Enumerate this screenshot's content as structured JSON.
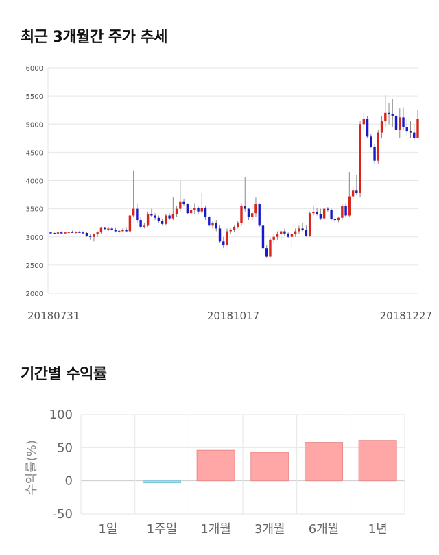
{
  "stock_section": {
    "title": "최근 3개월간 주가 추세"
  },
  "returns_section": {
    "title": "기간별 수익률"
  },
  "colors": {
    "up": "#d9261c",
    "down": "#1a1acd",
    "wick": "#888888",
    "bar_positive": "#ffa6a6",
    "bar_negative": "#a6dff0",
    "grid": "#e6e6e6"
  },
  "chart_data": [
    {
      "type": "candlestick",
      "title": "최근 3개월간 주가 추세",
      "ylim": [
        2000,
        6000
      ],
      "yticks": [
        2000,
        2500,
        3000,
        3500,
        4000,
        4500,
        5000,
        5500,
        6000
      ],
      "date_labels": [
        "20180731",
        "20181017",
        "20181227"
      ],
      "grid": true,
      "ohlc": [
        [
          3080,
          3090,
          3060,
          3070
        ],
        [
          3070,
          3080,
          3050,
          3060
        ],
        [
          3060,
          3090,
          3050,
          3080
        ],
        [
          3080,
          3100,
          3060,
          3070
        ],
        [
          3070,
          3090,
          3050,
          3080
        ],
        [
          3080,
          3100,
          3060,
          3090
        ],
        [
          3090,
          3110,
          3070,
          3080
        ],
        [
          3080,
          3100,
          3060,
          3090
        ],
        [
          3090,
          3110,
          3070,
          3080
        ],
        [
          3080,
          3100,
          3060,
          3070
        ],
        [
          3070,
          3090,
          3000,
          3020
        ],
        [
          3020,
          3050,
          2950,
          3000
        ],
        [
          3000,
          3060,
          2920,
          3050
        ],
        [
          3050,
          3100,
          3000,
          3080
        ],
        [
          3080,
          3180,
          3060,
          3160
        ],
        [
          3160,
          3180,
          3120,
          3140
        ],
        [
          3140,
          3170,
          3100,
          3150
        ],
        [
          3150,
          3180,
          3110,
          3130
        ],
        [
          3130,
          3160,
          3080,
          3100
        ],
        [
          3100,
          3140,
          3060,
          3110
        ],
        [
          3110,
          3150,
          3080,
          3120
        ],
        [
          3120,
          3160,
          3080,
          3100
        ],
        [
          3100,
          3400,
          3080,
          3380
        ],
        [
          3380,
          4180,
          3350,
          3500
        ],
        [
          3500,
          3600,
          3250,
          3300
        ],
        [
          3300,
          3350,
          3150,
          3180
        ],
        [
          3180,
          3250,
          3150,
          3200
        ],
        [
          3200,
          3450,
          3180,
          3400
        ],
        [
          3400,
          3500,
          3350,
          3380
        ],
        [
          3380,
          3420,
          3300,
          3340
        ],
        [
          3340,
          3380,
          3250,
          3280
        ],
        [
          3280,
          3320,
          3200,
          3230
        ],
        [
          3230,
          3400,
          3200,
          3380
        ],
        [
          3380,
          3420,
          3300,
          3330
        ],
        [
          3330,
          3700,
          3300,
          3400
        ],
        [
          3400,
          3550,
          3350,
          3500
        ],
        [
          3500,
          4000,
          3450,
          3620
        ],
        [
          3620,
          3680,
          3550,
          3580
        ],
        [
          3580,
          3600,
          3400,
          3420
        ],
        [
          3420,
          3550,
          3380,
          3480
        ],
        [
          3480,
          3600,
          3400,
          3520
        ],
        [
          3520,
          3550,
          3400,
          3450
        ],
        [
          3450,
          3780,
          3400,
          3520
        ],
        [
          3520,
          3550,
          3300,
          3350
        ],
        [
          3350,
          3380,
          3180,
          3200
        ],
        [
          3200,
          3280,
          3150,
          3250
        ],
        [
          3250,
          3300,
          3100,
          3150
        ],
        [
          3150,
          3200,
          2900,
          2920
        ],
        [
          2920,
          3000,
          2800,
          2850
        ],
        [
          2850,
          3150,
          2850,
          3100
        ],
        [
          3100,
          3150,
          3050,
          3120
        ],
        [
          3120,
          3200,
          3080,
          3180
        ],
        [
          3180,
          3280,
          3150,
          3250
        ],
        [
          3250,
          3600,
          3200,
          3550
        ],
        [
          3550,
          4060,
          3450,
          3500
        ],
        [
          3500,
          3520,
          3300,
          3350
        ],
        [
          3350,
          3450,
          3300,
          3420
        ],
        [
          3420,
          3700,
          3350,
          3580
        ],
        [
          3580,
          3600,
          3180,
          3200
        ],
        [
          3200,
          3250,
          2780,
          2800
        ],
        [
          2800,
          2850,
          2620,
          2650
        ],
        [
          2650,
          2970,
          2640,
          2950
        ],
        [
          2950,
          3050,
          2900,
          3000
        ],
        [
          3000,
          3100,
          2950,
          3050
        ],
        [
          3050,
          3120,
          2950,
          3100
        ],
        [
          3100,
          3150,
          3020,
          3060
        ],
        [
          3060,
          3080,
          2980,
          3000
        ],
        [
          3000,
          3080,
          2800,
          3050
        ],
        [
          3050,
          3150,
          3000,
          3100
        ],
        [
          3100,
          3200,
          3050,
          3150
        ],
        [
          3150,
          3250,
          3100,
          3120
        ],
        [
          3120,
          3200,
          3000,
          3020
        ],
        [
          3020,
          3450,
          3000,
          3420
        ],
        [
          3420,
          3560,
          3380,
          3440
        ],
        [
          3440,
          3520,
          3380,
          3400
        ],
        [
          3400,
          3500,
          3300,
          3330
        ],
        [
          3330,
          3520,
          3300,
          3500
        ],
        [
          3500,
          3530,
          3450,
          3480
        ],
        [
          3480,
          3500,
          3300,
          3320
        ],
        [
          3320,
          3380,
          3250,
          3300
        ],
        [
          3300,
          3360,
          3260,
          3340
        ],
        [
          3340,
          3580,
          3300,
          3550
        ],
        [
          3550,
          3600,
          3350,
          3380
        ],
        [
          3380,
          4150,
          3350,
          3720
        ],
        [
          3720,
          3900,
          3650,
          3820
        ],
        [
          3820,
          4100,
          3750,
          3780
        ],
        [
          3780,
          5050,
          3700,
          5000
        ],
        [
          5000,
          5200,
          4900,
          5100
        ],
        [
          5100,
          5150,
          4750,
          4780
        ],
        [
          4780,
          4820,
          4580,
          4600
        ],
        [
          4600,
          4650,
          4300,
          4350
        ],
        [
          4350,
          4900,
          4300,
          4850
        ],
        [
          4850,
          5150,
          4750,
          5050
        ],
        [
          5050,
          5520,
          4950,
          5200
        ],
        [
          5200,
          5380,
          5000,
          5180
        ],
        [
          5180,
          5450,
          4950,
          5150
        ],
        [
          5150,
          5350,
          4850,
          4900
        ],
        [
          4900,
          5280,
          4750,
          5120
        ],
        [
          5120,
          5300,
          4900,
          4950
        ],
        [
          4950,
          5100,
          4800,
          4880
        ],
        [
          4880,
          5050,
          4750,
          4850
        ],
        [
          4850,
          5000,
          4700,
          4760
        ],
        [
          4760,
          5250,
          4750,
          5100
        ]
      ]
    },
    {
      "type": "bar",
      "title": "기간별 수익률",
      "ylabel": "수익률(%)",
      "categories": [
        "1일",
        "1주일",
        "1개월",
        "3개월",
        "6개월",
        "1년"
      ],
      "values": [
        0,
        -3,
        46,
        43,
        58,
        61
      ],
      "ylim": [
        -50,
        100
      ],
      "yticks": [
        -50,
        0,
        50,
        100
      ],
      "grid": true
    }
  ]
}
